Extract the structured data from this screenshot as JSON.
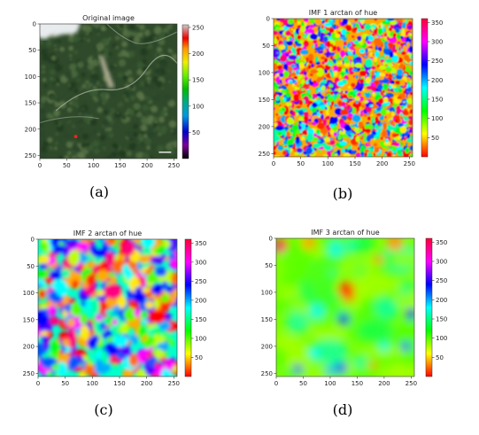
{
  "chart_data": [
    {
      "type": "heatmap",
      "title": "Original image",
      "caption": "(a)",
      "x_ticks": [
        0,
        50,
        100,
        150,
        200,
        250
      ],
      "y_ticks": [
        0,
        50,
        100,
        150,
        200,
        250
      ],
      "xlim": [
        0,
        256
      ],
      "ylim": [
        256,
        0
      ],
      "colorbar_ticks": [
        50,
        100,
        150,
        200,
        250
      ],
      "colorbar_range": [
        0,
        255
      ],
      "colormap": "nipy_spectral"
    },
    {
      "type": "heatmap",
      "title": "IMF 1 arctan of hue",
      "caption": "(b)",
      "x_ticks": [
        0,
        50,
        100,
        150,
        200,
        250
      ],
      "y_ticks": [
        0,
        50,
        100,
        150,
        200,
        250
      ],
      "xlim": [
        0,
        256
      ],
      "ylim": [
        256,
        0
      ],
      "colorbar_ticks": [
        50,
        100,
        150,
        200,
        250,
        300,
        350
      ],
      "colorbar_range": [
        0,
        360
      ],
      "colormap": "hsv"
    },
    {
      "type": "heatmap",
      "title": "IMF 2 arctan of hue",
      "caption": "(c)",
      "x_ticks": [
        0,
        50,
        100,
        150,
        200,
        250
      ],
      "y_ticks": [
        0,
        50,
        100,
        150,
        200,
        250
      ],
      "xlim": [
        0,
        256
      ],
      "ylim": [
        256,
        0
      ],
      "colorbar_ticks": [
        50,
        100,
        150,
        200,
        250,
        300,
        350
      ],
      "colorbar_range": [
        0,
        360
      ],
      "colormap": "hsv"
    },
    {
      "type": "heatmap",
      "title": "IMF 3 arctan of hue",
      "caption": "(d)",
      "x_ticks": [
        0,
        50,
        100,
        150,
        200,
        250
      ],
      "y_ticks": [
        0,
        50,
        100,
        150,
        200,
        250
      ],
      "xlim": [
        0,
        256
      ],
      "ylim": [
        256,
        0
      ],
      "colorbar_ticks": [
        50,
        100,
        150,
        200,
        250,
        300,
        350
      ],
      "colorbar_range": [
        0,
        360
      ],
      "colormap": "hsv"
    }
  ]
}
